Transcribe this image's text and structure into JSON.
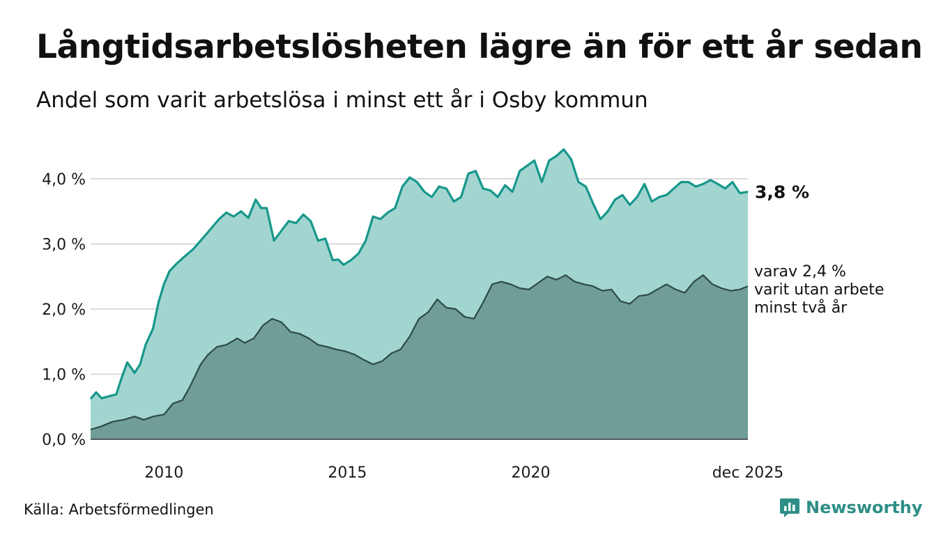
{
  "title": "Långtidsarbetslösheten lägre än för ett år sedan",
  "subtitle": "Andel som varit arbetslösa i minst ett år i Osby kommun",
  "source": "Källa: Arbetsförmedlingen",
  "brand": {
    "name": "Newsworthy",
    "icon": "newsworthy-logo-icon"
  },
  "colors": {
    "line_total": "#16978b",
    "area_total": "#a3d5d0",
    "line_long": "#2c4a45",
    "area_long": "#709d97",
    "grid": "#d9d9d9",
    "brand": "#2f8f87"
  },
  "chart_data": {
    "type": "area",
    "title": "Långtidsarbetslösheten lägre än för ett år sedan",
    "subtitle": "Andel som varit arbetslösa i minst ett år i Osby kommun",
    "x_range": [
      2008.0,
      2025.92
    ],
    "ylim": [
      0,
      4.5
    ],
    "y_ticks": [
      0,
      1,
      2,
      3,
      4
    ],
    "y_tick_labels": [
      "0,0 %",
      "1,0 %",
      "2,0 %",
      "3,0 %",
      "4,0 %"
    ],
    "x_ticks": [
      2010,
      2015,
      2020,
      2025.92
    ],
    "x_tick_labels": [
      "2010",
      "2015",
      "2020",
      "dec 2025"
    ],
    "grid": true,
    "end_label": "3,8 %",
    "annotation": [
      "varav 2,4 %",
      "varit utan arbete",
      "minst två år"
    ],
    "series": [
      {
        "name": "Arbetslösa minst ett år",
        "x": [
          2008.0,
          2008.15,
          2008.3,
          2008.5,
          2008.7,
          2008.85,
          2009.0,
          2009.2,
          2009.35,
          2009.5,
          2009.7,
          2009.85,
          2010.0,
          2010.15,
          2010.35,
          2010.55,
          2010.8,
          2011.0,
          2011.2,
          2011.5,
          2011.7,
          2011.9,
          2012.1,
          2012.3,
          2012.5,
          2012.65,
          2012.8,
          2013.0,
          2013.2,
          2013.4,
          2013.6,
          2013.8,
          2014.0,
          2014.2,
          2014.4,
          2014.6,
          2014.75,
          2014.9,
          2015.1,
          2015.3,
          2015.5,
          2015.7,
          2015.9,
          2016.1,
          2016.3,
          2016.5,
          2016.7,
          2016.9,
          2017.1,
          2017.3,
          2017.5,
          2017.7,
          2017.9,
          2018.1,
          2018.3,
          2018.5,
          2018.7,
          2018.9,
          2019.1,
          2019.3,
          2019.5,
          2019.7,
          2019.9,
          2020.1,
          2020.3,
          2020.5,
          2020.7,
          2020.9,
          2021.1,
          2021.3,
          2021.5,
          2021.7,
          2021.9,
          2022.1,
          2022.3,
          2022.5,
          2022.7,
          2022.9,
          2023.1,
          2023.3,
          2023.5,
          2023.7,
          2023.9,
          2024.1,
          2024.3,
          2024.5,
          2024.7,
          2024.9,
          2025.1,
          2025.3,
          2025.5,
          2025.7,
          2025.92
        ],
        "values": [
          0.62,
          0.72,
          0.63,
          0.66,
          0.69,
          0.95,
          1.18,
          1.02,
          1.15,
          1.45,
          1.7,
          2.1,
          2.38,
          2.58,
          2.7,
          2.8,
          2.92,
          3.05,
          3.18,
          3.38,
          3.48,
          3.42,
          3.5,
          3.4,
          3.68,
          3.55,
          3.55,
          3.05,
          3.2,
          3.35,
          3.32,
          3.45,
          3.35,
          3.05,
          3.08,
          2.75,
          2.76,
          2.68,
          2.75,
          2.85,
          3.05,
          3.42,
          3.38,
          3.48,
          3.55,
          3.88,
          4.02,
          3.95,
          3.8,
          3.72,
          3.88,
          3.85,
          3.65,
          3.72,
          4.08,
          4.12,
          3.85,
          3.82,
          3.72,
          3.9,
          3.8,
          4.12,
          4.2,
          4.28,
          3.95,
          4.28,
          4.35,
          4.45,
          4.3,
          3.95,
          3.88,
          3.62,
          3.38,
          3.5,
          3.68,
          3.75,
          3.6,
          3.72,
          3.92,
          3.65,
          3.72,
          3.75,
          3.85,
          3.95,
          3.95,
          3.88,
          3.92,
          3.98,
          3.92,
          3.85,
          3.95,
          3.78,
          3.8
        ]
      },
      {
        "name": "varav minst två år",
        "x": [
          2008.0,
          2008.3,
          2008.6,
          2008.9,
          2009.2,
          2009.45,
          2009.7,
          2010.0,
          2010.25,
          2010.5,
          2010.7,
          2011.0,
          2011.2,
          2011.45,
          2011.7,
          2012.0,
          2012.2,
          2012.45,
          2012.7,
          2012.95,
          2013.2,
          2013.45,
          2013.7,
          2013.95,
          2014.2,
          2014.45,
          2014.7,
          2014.95,
          2015.2,
          2015.45,
          2015.7,
          2015.95,
          2016.2,
          2016.45,
          2016.7,
          2016.95,
          2017.2,
          2017.45,
          2017.7,
          2017.95,
          2018.2,
          2018.45,
          2018.7,
          2018.95,
          2019.2,
          2019.45,
          2019.7,
          2019.95,
          2020.2,
          2020.45,
          2020.7,
          2020.95,
          2021.2,
          2021.45,
          2021.7,
          2021.95,
          2022.2,
          2022.45,
          2022.7,
          2022.95,
          2023.2,
          2023.45,
          2023.7,
          2023.95,
          2024.2,
          2024.45,
          2024.7,
          2024.95,
          2025.2,
          2025.45,
          2025.7,
          2025.92
        ],
        "values": [
          0.15,
          0.2,
          0.27,
          0.3,
          0.35,
          0.3,
          0.35,
          0.38,
          0.55,
          0.6,
          0.8,
          1.15,
          1.3,
          1.42,
          1.45,
          1.55,
          1.48,
          1.55,
          1.75,
          1.85,
          1.8,
          1.65,
          1.62,
          1.55,
          1.45,
          1.42,
          1.38,
          1.35,
          1.3,
          1.22,
          1.15,
          1.2,
          1.32,
          1.38,
          1.58,
          1.85,
          1.95,
          2.15,
          2.02,
          2.0,
          1.88,
          1.85,
          2.1,
          2.38,
          2.42,
          2.38,
          2.32,
          2.3,
          2.4,
          2.5,
          2.45,
          2.52,
          2.42,
          2.38,
          2.35,
          2.28,
          2.3,
          2.12,
          2.08,
          2.2,
          2.22,
          2.3,
          2.38,
          2.3,
          2.25,
          2.42,
          2.52,
          2.38,
          2.32,
          2.28,
          2.3,
          2.35
        ]
      }
    ]
  }
}
